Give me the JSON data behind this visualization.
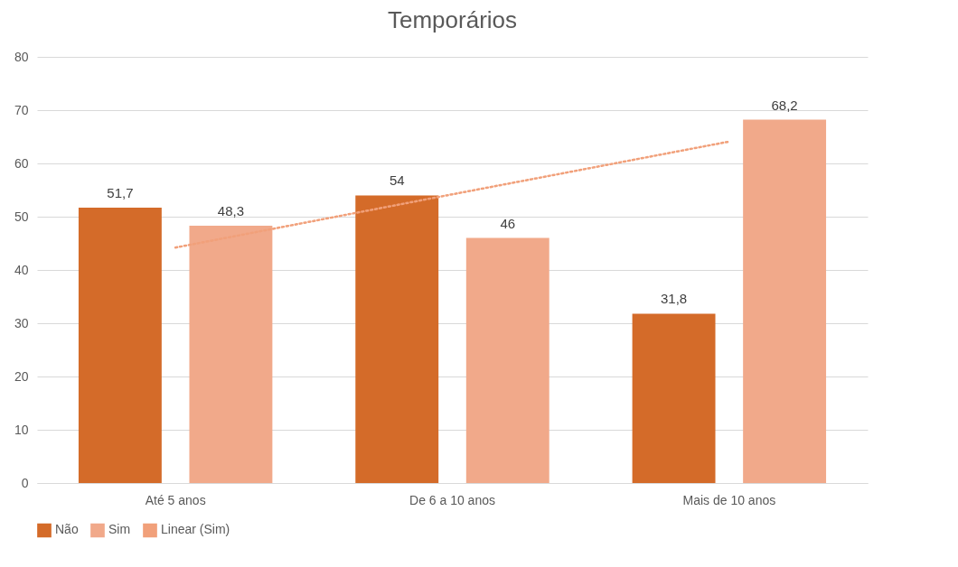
{
  "chart_data": {
    "type": "bar",
    "title": "Temporários",
    "categories": [
      "Até 5 anos",
      "De 6 a 10 anos",
      "Mais de 10 anos"
    ],
    "series": [
      {
        "name": "Não",
        "color": "#d46b29",
        "values": [
          51.7,
          54,
          31.8
        ],
        "value_labels": [
          "51,7",
          "54",
          "31,8"
        ]
      },
      {
        "name": "Sim",
        "color": "#f1a98a",
        "values": [
          48.3,
          46,
          68.2
        ],
        "value_labels": [
          "48,3",
          "46",
          "68,2"
        ]
      },
      {
        "name": "Linear (Sim)",
        "type": "line",
        "color": "#f1a07a",
        "line_style": "dotted",
        "x": [
          "Até 5 anos",
          "De 6 a 10 anos",
          "Mais de 10 anos"
        ],
        "values": [
          44.2,
          54.2,
          64.1
        ]
      }
    ],
    "ylim": [
      0,
      80
    ],
    "yticks": [
      0,
      10,
      20,
      30,
      40,
      50,
      60,
      70,
      80
    ],
    "grid": "y",
    "legend": "bottom"
  }
}
